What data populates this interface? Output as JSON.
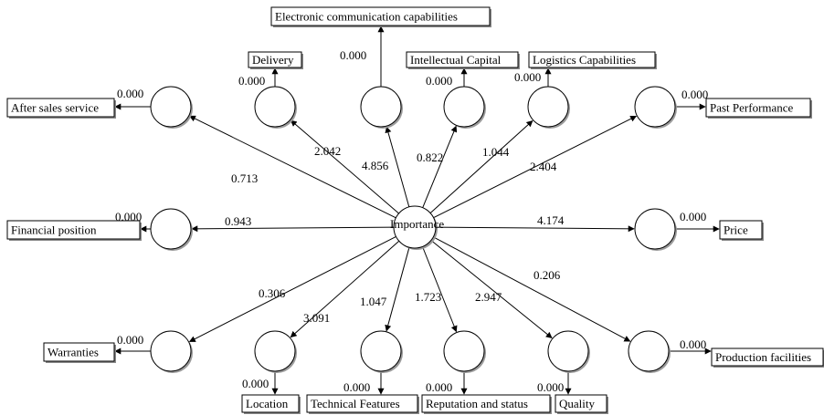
{
  "center": {
    "label": "Importance"
  },
  "constructs": [
    {
      "id": "after-sales-service",
      "label": "After sales service",
      "loading": "0.000",
      "path": "0.713"
    },
    {
      "id": "delivery",
      "label": "Delivery",
      "loading": "0.000",
      "path": "2.042"
    },
    {
      "id": "electronic-communication-capabilities",
      "label": "Electronic communication capabilities",
      "loading": "0.000",
      "path": "4.856"
    },
    {
      "id": "intellectual-capital",
      "label": "Intellectual Capital",
      "loading": "0.000",
      "path": "0.822"
    },
    {
      "id": "logistics-capabilities",
      "label": "Logistics Capabilities",
      "loading": "0.000",
      "path": "1.044"
    },
    {
      "id": "past-performance",
      "label": "Past Performance",
      "loading": "0.000",
      "path": "2.404"
    },
    {
      "id": "financial-position",
      "label": "Financial position",
      "loading": "0.000",
      "path": "0.943"
    },
    {
      "id": "price",
      "label": "Price",
      "loading": "0.000",
      "path": "4.174"
    },
    {
      "id": "warranties",
      "label": "Warranties",
      "loading": "0.000",
      "path": "0.306"
    },
    {
      "id": "location",
      "label": "Location",
      "loading": "0.000",
      "path": "3.091"
    },
    {
      "id": "technical-features",
      "label": "Technical Features",
      "loading": "0.000",
      "path": "1.047"
    },
    {
      "id": "reputation-and-status",
      "label": "Reputation and status",
      "loading": "0.000",
      "path": "1.723"
    },
    {
      "id": "quality",
      "label": "Quality",
      "loading": "0.000",
      "path": "2.947"
    },
    {
      "id": "production-facilities",
      "label": "Production facilities",
      "loading": "0.000",
      "path": "0.206"
    }
  ]
}
